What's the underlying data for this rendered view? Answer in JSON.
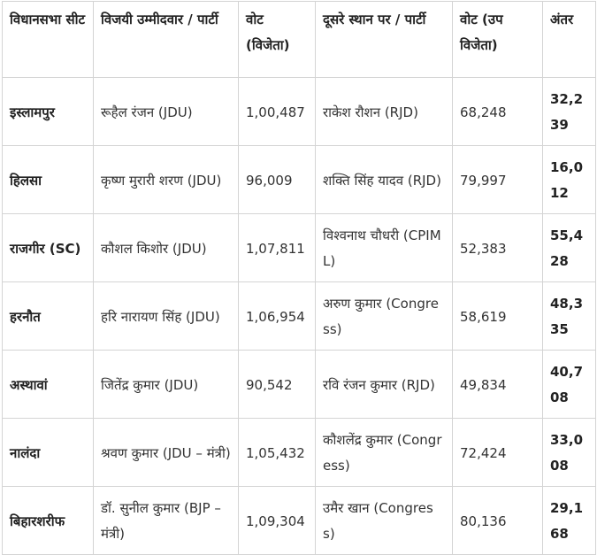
{
  "table": {
    "headers": [
      "विधानसभा सीट",
      "विजयी उम्मीदवार / पार्टी",
      "वोट (विजेता)",
      "दूसरे स्थान पर / पार्टी",
      "वोट (उपविजेता)",
      "अंतर"
    ],
    "rows": [
      {
        "seat": "इस्लामपुर",
        "winner": "रूहैल रंजन (JDU)",
        "winner_votes": "1,00,487",
        "runner_up": "राकेश रौशन (RJD)",
        "runner_up_votes": "68,248",
        "margin": "32,239"
      },
      {
        "seat": "हिलसा",
        "winner": "कृष्ण मुरारी शरण (JDU)",
        "winner_votes": "96,009",
        "runner_up": "शक्ति सिंह यादव (RJD)",
        "runner_up_votes": "79,997",
        "margin": "16,012"
      },
      {
        "seat": "राजगीर (SC)",
        "winner": "कौशल किशोर (JDU)",
        "winner_votes": "1,07,811",
        "runner_up": "विश्वनाथ चौधरी (CPIML)",
        "runner_up_votes": "52,383",
        "margin": "55,428"
      },
      {
        "seat": "हरनौत",
        "winner": "हरि नारायण सिंह (JDU)",
        "winner_votes": "1,06,954",
        "runner_up": "अरुण कुमार (Congress)",
        "runner_up_votes": "58,619",
        "margin": "48,335"
      },
      {
        "seat": "अस्थावां",
        "winner": "जितेंद्र कुमार (JDU)",
        "winner_votes": "90,542",
        "runner_up": "रवि रंजन कुमार (RJD)",
        "runner_up_votes": "49,834",
        "margin": "40,708"
      },
      {
        "seat": "नालंदा",
        "winner": "श्रवण कुमार (JDU – मंत्री)",
        "winner_votes": "1,05,432",
        "runner_up": "कौशलेंद्र कुमार (Congress)",
        "runner_up_votes": "72,424",
        "margin": "33,008"
      },
      {
        "seat": "बिहारशरीफ",
        "winner": "डॉ. सुनील कुमार (BJP – मंत्री)",
        "winner_votes": "1,09,304",
        "runner_up": "उमैर खान (Congress)",
        "runner_up_votes": "80,136",
        "margin": "29,168"
      }
    ]
  }
}
